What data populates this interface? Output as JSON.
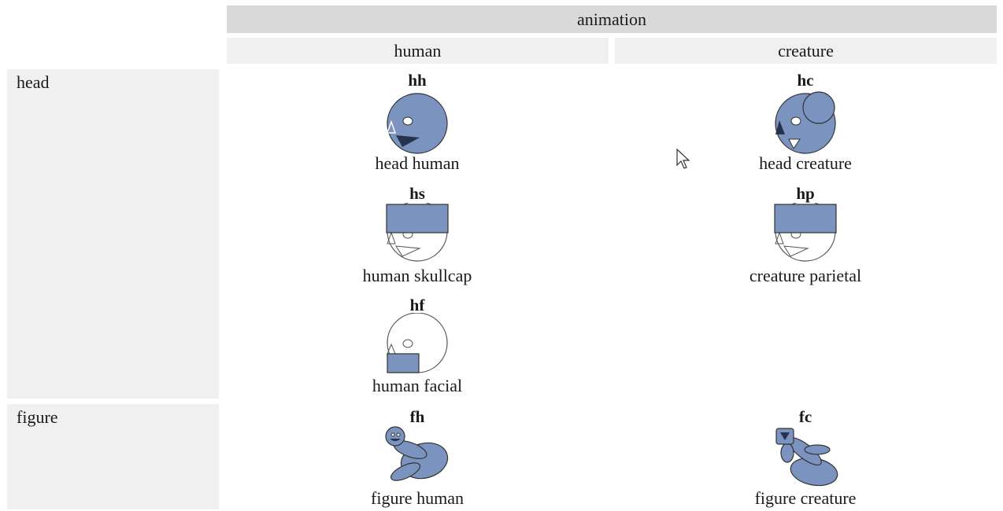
{
  "table": {
    "header": "animation",
    "columns": [
      "human",
      "creature"
    ],
    "rows": [
      {
        "label": "head",
        "cells": [
          [
            {
              "code": "hh",
              "label": "head human"
            },
            {
              "code": "hs",
              "label": "human skullcap"
            },
            {
              "code": "hf",
              "label": "human facial"
            }
          ],
          [
            {
              "code": "hc",
              "label": "head creature"
            },
            {
              "code": "hp",
              "label": "creature parietal"
            }
          ]
        ]
      },
      {
        "label": "figure",
        "cells": [
          [
            {
              "code": "fh",
              "label": "figure human"
            }
          ],
          [
            {
              "code": "fc",
              "label": "figure creature"
            }
          ]
        ]
      }
    ]
  }
}
